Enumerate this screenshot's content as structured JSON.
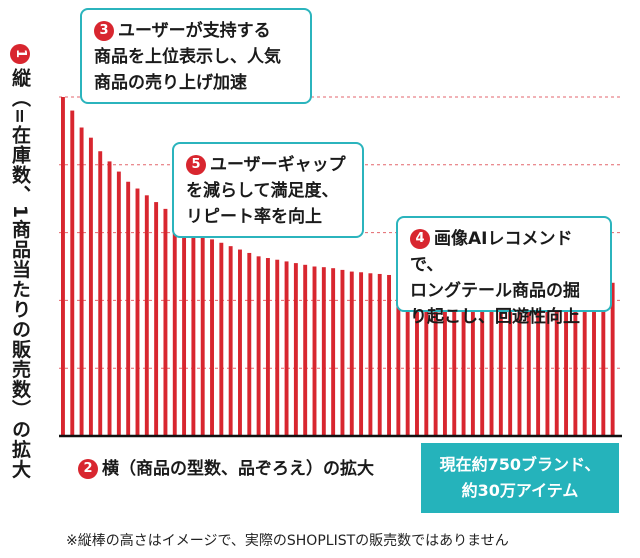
{
  "chart_data": {
    "type": "bar",
    "title": "",
    "ylabel_num": "1",
    "ylabel": "縦（=在庫数、1商品当たりの販売数）の拡大",
    "xlabel_num": "2",
    "xlabel": "横（商品の型数、品ぞろえ）の拡大",
    "values": [
      100,
      96,
      91,
      88,
      84,
      81,
      78,
      75,
      73,
      71,
      69,
      67,
      65,
      63,
      61,
      59,
      58,
      57,
      56,
      55,
      54,
      53,
      52.5,
      52,
      51.5,
      51,
      50.5,
      50,
      49.8,
      49.5,
      49,
      48.5,
      48.3,
      48,
      47.8,
      47.5,
      47.3,
      47,
      46.8,
      46.6,
      46.4,
      46.2,
      46.1,
      46,
      45.9,
      45.8,
      45.7,
      45.6,
      45.5,
      45.5,
      45.4,
      45.4,
      45.3,
      45.3,
      45.3,
      45.2,
      45.2,
      45.2,
      45.2,
      45.2
    ],
    "ylim": [
      0,
      100
    ],
    "grid": true,
    "bar_color": "#d8262f",
    "grid_color": "#d8262f",
    "axis_color": "#111111"
  },
  "callouts": [
    {
      "num": "3",
      "lines": [
        "ユーザーが支持する",
        "商品を上位表示し、人気",
        "商品の売り上げ加速"
      ]
    },
    {
      "num": "5",
      "lines": [
        "ユーザーギャップ",
        "を減らして満足度、",
        "リピート率を向上"
      ]
    },
    {
      "num": "4",
      "lines": [
        "画像AIレコメンドで、",
        "ロングテール商品の掘",
        "り起こし、回遊性向上"
      ]
    }
  ],
  "note_box": {
    "lines": [
      "現在約750ブランド、",
      "約30万アイテム"
    ]
  },
  "footnote": "※縦棒の高さはイメージで、実際のSHOPLISTの販売数ではありません",
  "colors": {
    "accent": "#2bb4bd",
    "bar": "#d8262f"
  }
}
